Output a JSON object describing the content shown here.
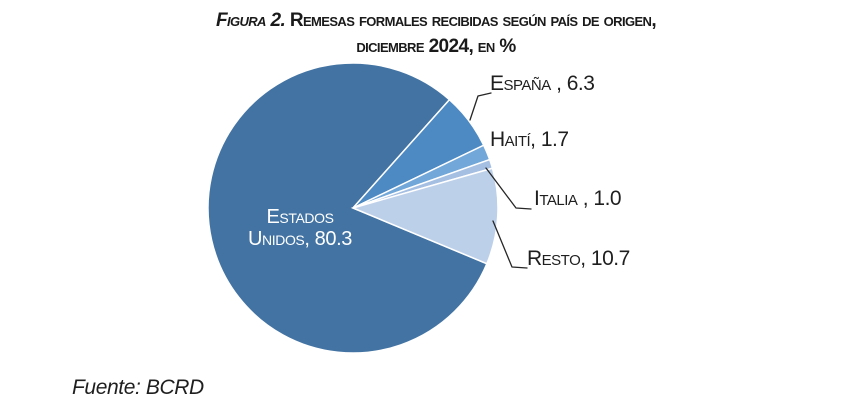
{
  "title": {
    "figura": "Figura 2.",
    "line1_rest": " Remesas formales recibidas según país de origen,",
    "line2": "diciembre 2024, en %"
  },
  "source": {
    "text": "Fuente: BCRD"
  },
  "chart_data": {
    "type": "pie",
    "title": "Figura 2. Remesas formales recibidas según país de origen, diciembre 2024, en %",
    "unit": "%",
    "rotation_deg": 112.6,
    "legend_position": "callout-labels",
    "categories": [
      "Estados Unidos",
      "España",
      "Haití",
      "Italia",
      "Resto"
    ],
    "values": [
      80.3,
      6.3,
      1.7,
      1.0,
      10.7
    ],
    "colors": [
      "#4273A3",
      "#4D89C2",
      "#72A7D9",
      "#A5BFE3",
      "#BDD0EA"
    ],
    "labels": {
      "estados_line1": "Estados",
      "estados_line2": "Unidos, 80.3",
      "espana": "España , 6.3",
      "haiti": "Haití, 1.7",
      "italia": "Italia , 1.0",
      "resto": "Resto, 10.7"
    },
    "source": "Fuente: BCRD"
  }
}
